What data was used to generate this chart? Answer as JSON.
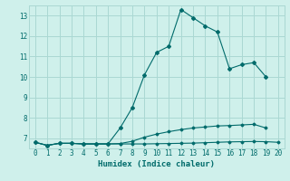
{
  "xlabel": "Humidex (Indice chaleur)",
  "bg_color": "#cff0eb",
  "grid_color": "#aad8d3",
  "line_color": "#006b6b",
  "xlim": [
    -0.5,
    20.5
  ],
  "ylim": [
    6.5,
    13.5
  ],
  "xticks": [
    0,
    1,
    2,
    3,
    4,
    5,
    6,
    7,
    8,
    9,
    10,
    11,
    12,
    13,
    14,
    15,
    16,
    17,
    18,
    19,
    20
  ],
  "yticks": [
    7,
    8,
    9,
    10,
    11,
    12,
    13
  ],
  "series1_x": [
    0,
    1,
    2,
    3,
    4,
    5,
    6,
    7,
    8,
    9,
    10,
    11,
    12,
    13,
    14,
    15,
    16,
    17,
    18,
    19,
    20
  ],
  "series1_y": [
    6.8,
    6.65,
    6.75,
    6.75,
    6.72,
    6.72,
    6.72,
    6.72,
    6.72,
    6.72,
    6.73,
    6.74,
    6.75,
    6.76,
    6.78,
    6.8,
    6.82,
    6.83,
    6.84,
    6.83,
    6.8
  ],
  "series2_x": [
    0,
    1,
    2,
    3,
    4,
    5,
    6,
    7,
    8,
    9,
    10,
    11,
    12,
    13,
    14,
    15,
    16,
    17,
    18,
    19
  ],
  "series2_y": [
    6.8,
    6.65,
    6.75,
    6.75,
    6.72,
    6.72,
    6.72,
    6.74,
    6.85,
    7.05,
    7.2,
    7.32,
    7.42,
    7.5,
    7.55,
    7.6,
    7.62,
    7.65,
    7.68,
    7.5
  ],
  "series3_x": [
    0,
    1,
    2,
    3,
    4,
    5,
    6,
    7,
    8,
    9,
    10,
    11,
    12,
    13,
    14,
    15,
    16,
    17,
    18,
    19
  ],
  "series3_y": [
    6.8,
    6.65,
    6.75,
    6.75,
    6.72,
    6.72,
    6.72,
    7.5,
    8.5,
    10.1,
    11.2,
    11.5,
    13.3,
    12.9,
    12.5,
    12.2,
    10.4,
    10.6,
    10.7,
    10.0
  ]
}
